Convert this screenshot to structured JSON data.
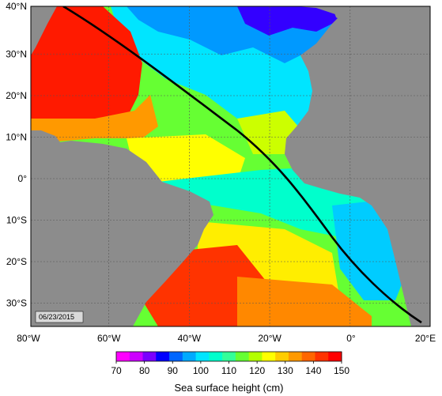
{
  "map": {
    "date_label": "06/23/2015",
    "lat_labels": [
      "40°N",
      "30°N",
      "20°N",
      "10°N",
      "0°",
      "10°S",
      "20°S",
      "30°S"
    ],
    "lon_labels": [
      "80°W",
      "60°W",
      "40°W",
      "20°W",
      "0°",
      "20°E"
    ],
    "land_color": "#8c8c8c",
    "track_color": "#000000"
  },
  "colorbar": {
    "title": "Sea surface height (cm)",
    "ticks": [
      "70",
      "80",
      "90",
      "100",
      "110",
      "120",
      "130",
      "140",
      "150"
    ],
    "colors": [
      "#ff00ff",
      "#cc00ff",
      "#7a00ff",
      "#0000ff",
      "#0066ff",
      "#00aaff",
      "#00e5ff",
      "#00ffcc",
      "#33ff99",
      "#66ff33",
      "#b3ff00",
      "#ffff00",
      "#ffcc00",
      "#ff9900",
      "#ff6600",
      "#ff3300",
      "#ff0000"
    ]
  }
}
